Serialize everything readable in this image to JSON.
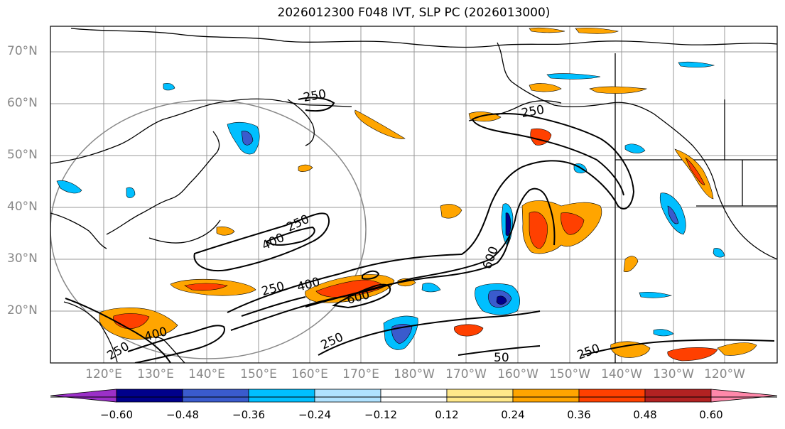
{
  "title": "2026012300 F048 IVT, SLP PC (2026013000)",
  "map": {
    "lat_labels": [
      "70°N",
      "60°N",
      "50°N",
      "40°N",
      "30°N",
      "20°N"
    ],
    "lon_labels": [
      "120°E",
      "130°E",
      "140°E",
      "150°E",
      "160°E",
      "170°E",
      "180°W",
      "170°W",
      "160°W",
      "150°W",
      "140°W",
      "130°W",
      "120°W"
    ],
    "contour_labels": [
      "250",
      "250",
      "400",
      "250",
      "400",
      "600",
      "600",
      "250",
      "400",
      "250",
      "250",
      "250",
      "50"
    ]
  },
  "colorbar": {
    "labels": [
      "−0.60",
      "−0.48",
      "−0.36",
      "−0.24",
      "−0.12",
      "0.12",
      "0.24",
      "0.36",
      "0.48",
      "0.60"
    ],
    "colors": [
      "#9b30c8",
      "#00008b",
      "#3a5bcd",
      "#00bfff",
      "#b0e2ff",
      "#ffffff",
      "#ffe88a",
      "#ffa500",
      "#ff4000",
      "#b22222",
      "#ff88aa"
    ]
  }
}
